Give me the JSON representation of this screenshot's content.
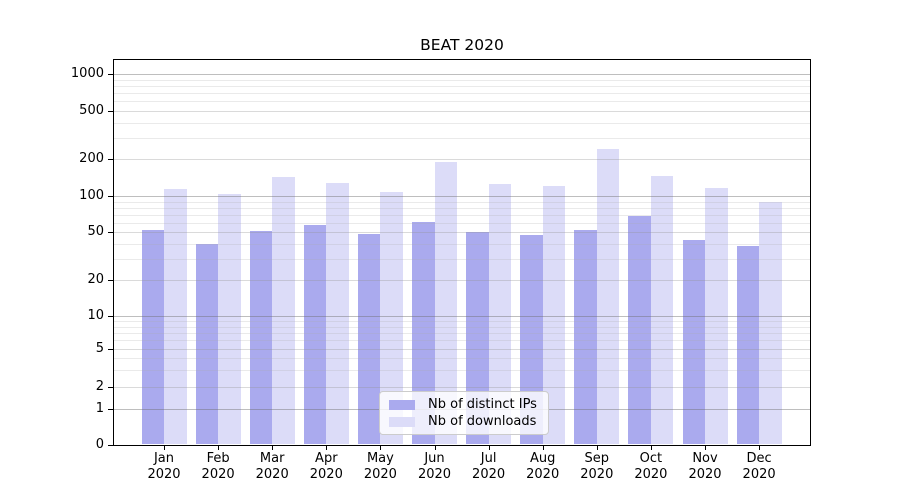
{
  "chart_data": {
    "type": "bar",
    "title": "BEAT 2020",
    "categories": [
      "Jan",
      "Feb",
      "Mar",
      "Apr",
      "May",
      "Jun",
      "Jul",
      "Aug",
      "Sep",
      "Oct",
      "Nov",
      "Dec"
    ],
    "year_label": "2020",
    "series": [
      {
        "name": "Nb of distinct IPs",
        "color": "#aaaaee",
        "values": [
          52,
          40,
          51,
          57,
          48,
          61,
          50,
          47,
          52,
          68,
          43,
          38
        ]
      },
      {
        "name": "Nb of downloads",
        "color": "#dcdcf8",
        "values": [
          115,
          103,
          143,
          127,
          108,
          190,
          125,
          122,
          245,
          145,
          117,
          90
        ]
      }
    ],
    "yscale": "symlog",
    "yticks": [
      0,
      1,
      2,
      5,
      10,
      20,
      50,
      100,
      200,
      500,
      1000
    ],
    "ylim": [
      0,
      1300
    ],
    "xlabel": "",
    "ylabel": "",
    "grid": true,
    "grid_over_bars": true,
    "legend_position": "lower center"
  },
  "colors": {
    "background": "#ffffff",
    "axis": "#000000",
    "grid_major": "#bebebe",
    "grid_sub": "#dcdcdc",
    "grid_minor": "#eaeaea",
    "legend_border": "#cccccc"
  }
}
